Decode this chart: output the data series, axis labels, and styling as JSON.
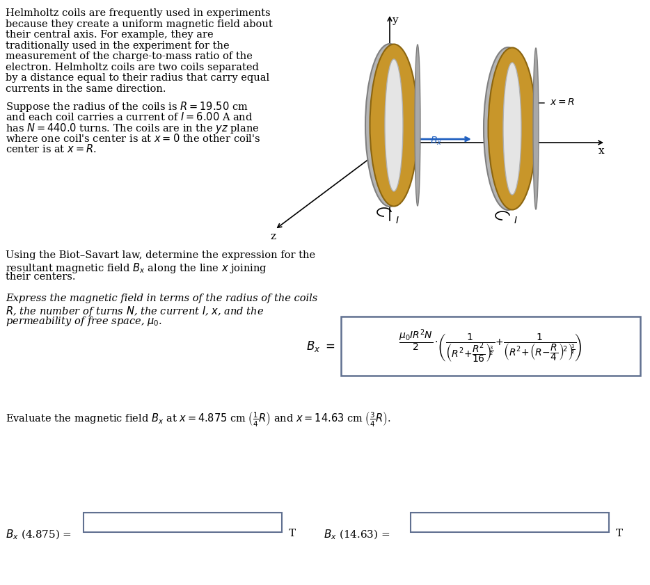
{
  "bg_color": "#ffffff",
  "text_color": "#000000",
  "paragraph1": "Helmholtz coils are frequently used in experiments\nbecause they create a uniform magnetic field about\ntheir central axis. For example, they are\ntraditionally used in the experiment for the\nmeasurement of the charge-to-mass ratio of the\nelectron. Helmholtz coils are two coils separated\nby a distance equal to their radius that carry equal\ncurrents in the same direction.",
  "paragraph2_line1": "Suppose the radius of the coils is $R = 19.50$ cm",
  "paragraph2_line2": "and each coil carries a current of $I = 6.00$ A and",
  "paragraph2_line3": "has $N = 440.0$ turns. The coils are in the $yz$ plane",
  "paragraph2_line4": "where one coil's center is at $x = 0$ the other coil's",
  "paragraph2_line5": "center is at $x = R$.",
  "paragraph3_line1": "Using the Biot–Savart law, determine the expression for the",
  "paragraph3_line2": "resultant magnetic field $B_x$ along the line $x$ joining",
  "paragraph3_line3": "their centers.",
  "paragraph4_line1": "Express the magnetic field in terms of the radius of the coils",
  "paragraph4_line2": "$R$, the number of turns $N$, the current $I$, $x$, and the",
  "paragraph4_line3": "permeability of free space, $\\mu_0$.",
  "evaluate_text": "Evaluate the magnetic field $B_x$ at $x = 4.875$ cm $\\left(\\frac{1}{4}R\\right)$ and $x = 14.63$ cm $\\left(\\frac{3}{4}R\\right)$.",
  "bottom_label1": "$B_x$ (4.875) =",
  "bottom_label2": "$B_x$ (14.63) =",
  "unit": "T",
  "formula": "$B_x = \\dfrac{\\mu_0 I R^2 N}{2} \\cdot \\left( \\dfrac{1}{\\left(R^2 + \\dfrac{R^2}{16}\\right)^{3/2}} + \\dfrac{1}{\\left(R^2 + \\left(R - \\dfrac{R}{4}\\right)^2\\right)^{3/2}} \\right)$"
}
